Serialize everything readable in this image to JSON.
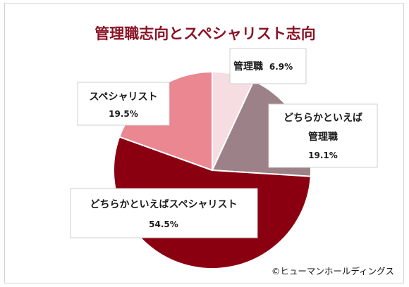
{
  "chart_data": {
    "type": "pie",
    "title": "管理職志向とスペシャリスト志向",
    "slices": [
      {
        "label": "管理職",
        "value": 6.9,
        "value_text": "6.9%",
        "color": "#f5dde2"
      },
      {
        "label": "どちらかといえば管理職",
        "value": 19.1,
        "value_text": "19.1%",
        "color": "#9c8288"
      },
      {
        "label": "どちらかといえばスペシャリスト",
        "value": 54.5,
        "value_text": "54.5%",
        "color": "#8b0011"
      },
      {
        "label": "スペシャリスト",
        "value": 19.5,
        "value_text": "19.5%",
        "color": "#ea8790"
      }
    ],
    "start_angle": "12 o'clock",
    "direction": "clockwise",
    "legend": "none"
  },
  "credit": "©ヒューマンホールディングス",
  "colors": {
    "title": "#8a1426",
    "slice_border": "#ffffff"
  }
}
